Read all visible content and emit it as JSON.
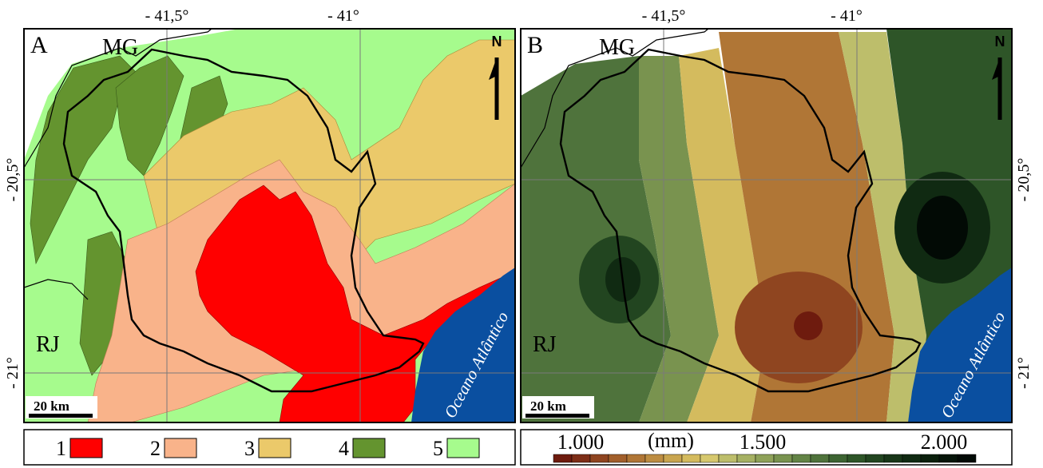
{
  "top_ticks": [
    "- 41,5°",
    "- 41°"
  ],
  "side_ticks": [
    "- 20,5°",
    "- 21°"
  ],
  "panel_a": {
    "letter": "A",
    "state_top": "MG",
    "state_bottom": "RJ",
    "north": "N",
    "scale_label": "20 km",
    "ocean_label": "Oceano Atlântico"
  },
  "panel_b": {
    "letter": "B",
    "state_top": "MG",
    "state_bottom": "RJ",
    "north": "N",
    "scale_label": "20 km",
    "ocean_label": "Oceano Atlântico"
  },
  "legend_a": {
    "classes": [
      {
        "label": "1",
        "color": "#ff0000"
      },
      {
        "label": "2",
        "color": "#f9b38a"
      },
      {
        "label": "3",
        "color": "#ebc96a"
      },
      {
        "label": "4",
        "color": "#64942f"
      },
      {
        "label": "5",
        "color": "#a6fb8d"
      }
    ]
  },
  "legend_b": {
    "unit": "(mm)",
    "labels": [
      "1.000",
      "1.500",
      "2.000"
    ],
    "ramp_colors": [
      "#6e1b0e",
      "#7d2e17",
      "#8f4520",
      "#a25f2b",
      "#b07636",
      "#bd8d42",
      "#c9a54f",
      "#d4bb5e",
      "#d6c86e",
      "#bdbe6b",
      "#a6b163",
      "#8fa259",
      "#79934f",
      "#638446",
      "#4f733c",
      "#3d6432",
      "#2e5528",
      "#224520",
      "#183618",
      "#102a12",
      "#0a1f0c",
      "#06150a",
      "#020a05"
    ]
  },
  "colors": {
    "ocean": "#0a4fa0",
    "outside": "#ffffff"
  }
}
